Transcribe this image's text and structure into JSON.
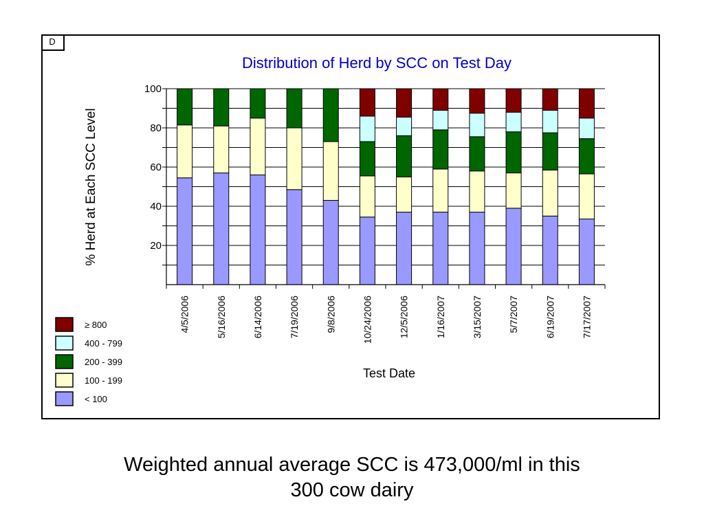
{
  "panel_tag": "D",
  "caption": {
    "line1": "Weighted annual average SCC is 473,000/ml in this",
    "line2": "300 cow dairy"
  },
  "chart_data": {
    "type": "bar",
    "stacked": true,
    "title": "Distribution of Herd by SCC on Test Day",
    "xlabel": "Test Date",
    "ylabel": "% Herd at Each SCC Level",
    "ylim": [
      0,
      100
    ],
    "yticks": [
      20,
      40,
      60,
      80,
      100
    ],
    "grid": true,
    "legend_position": "bottom-left",
    "categories": [
      "4/5/2006",
      "5/16/2006",
      "6/14/2006",
      "7/19/2006",
      "9/8/2006",
      "10/24/2006",
      "12/5/2006",
      "1/16/2007",
      "3/15/2007",
      "5/7/2007",
      "6/19/2007",
      "7/17/2007"
    ],
    "series": [
      {
        "name": "< 100",
        "color": "#9999ff",
        "values": [
          54.5,
          57,
          56,
          48.5,
          43,
          34.5,
          37,
          37,
          37,
          39,
          35,
          33.5
        ]
      },
      {
        "name": "100 - 199",
        "color": "#ffffcc",
        "values": [
          27,
          24,
          29,
          31.5,
          30,
          21,
          18,
          22,
          21,
          18,
          23.5,
          23
        ]
      },
      {
        "name": "200 - 399",
        "color": "#006600",
        "values": [
          18.5,
          19,
          15,
          20,
          27,
          17.5,
          21,
          20,
          17.5,
          21,
          19,
          18
        ]
      },
      {
        "name": "400 - 799",
        "color": "#ccffff",
        "values": [
          0,
          0,
          0,
          0,
          0,
          13,
          9.5,
          10,
          12,
          10,
          11.5,
          10.5
        ]
      },
      {
        "name": "≥ 800",
        "color": "#800000",
        "values": [
          0,
          0,
          0,
          0,
          0,
          14,
          14.5,
          11,
          12.5,
          12,
          11,
          15
        ]
      }
    ]
  }
}
